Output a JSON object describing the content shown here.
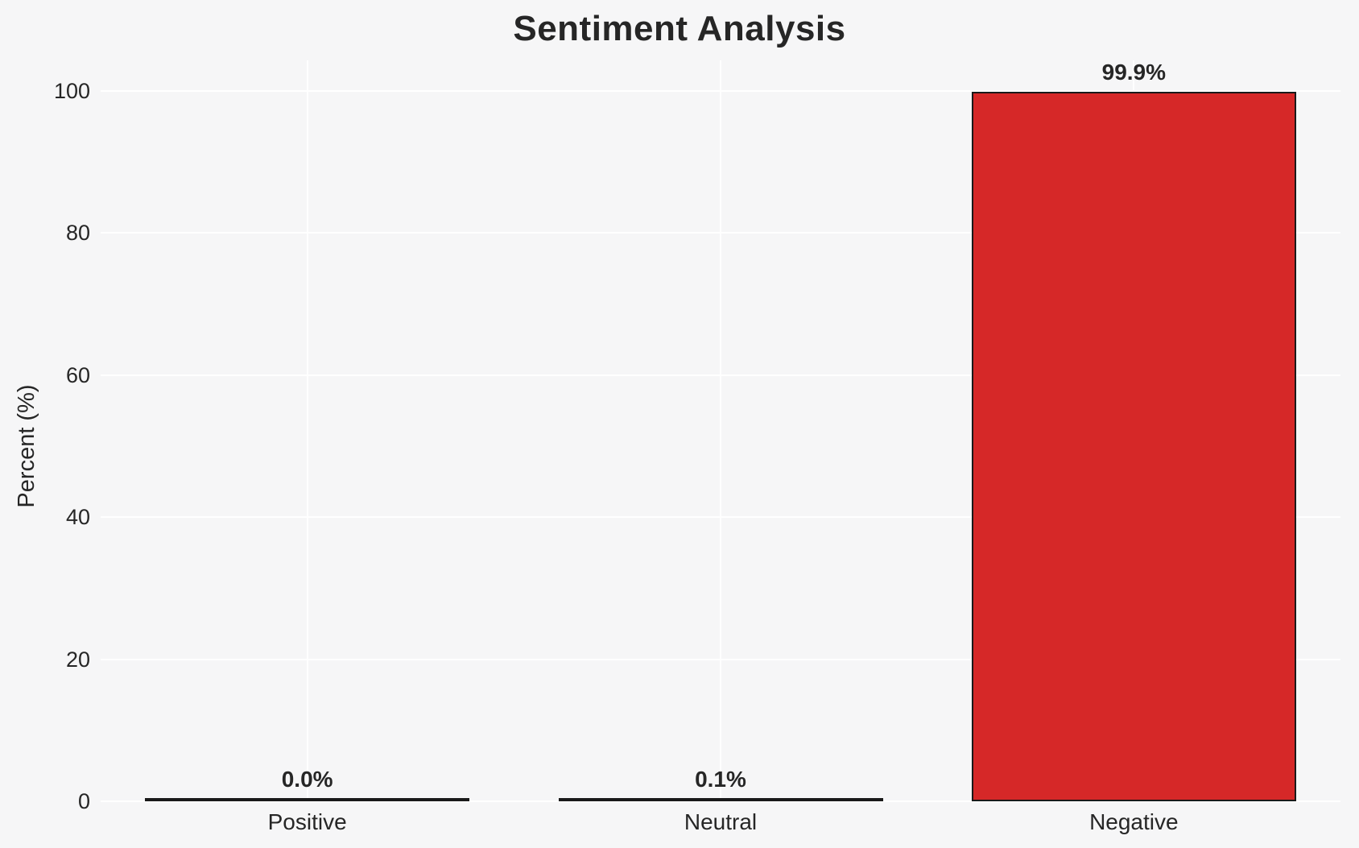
{
  "chart_data": {
    "type": "bar",
    "title": "Sentiment Analysis",
    "ylabel": "Percent (%)",
    "xlabel": "",
    "categories": [
      "Positive",
      "Neutral",
      "Negative"
    ],
    "values": [
      0.0,
      0.1,
      99.9
    ],
    "value_labels": [
      "0.0%",
      "0.1%",
      "99.9%"
    ],
    "yticks": [
      0,
      20,
      40,
      60,
      80,
      100
    ],
    "ylim": [
      0,
      104
    ],
    "grid": "on",
    "legend": "none",
    "colors": {
      "background": "#f6f6f7",
      "gridline": "#ffffff",
      "bar_fill": "#d62828",
      "bar_edge": "#1a1a1a",
      "text": "#262626"
    }
  }
}
